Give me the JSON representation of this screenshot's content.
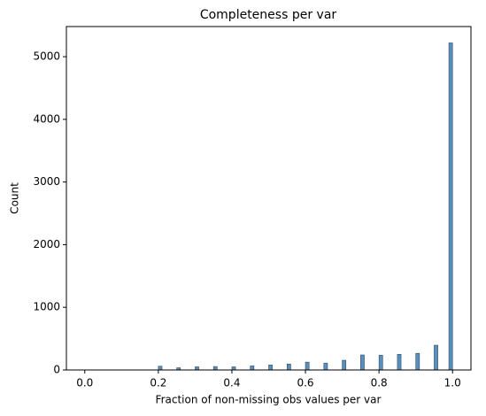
{
  "chart_data": {
    "type": "histogram",
    "title": "Completeness per var",
    "x_label": "Fraction of non-missing obs values per var",
    "y_label": "Count",
    "bins": [
      0,
      0.01,
      0.02,
      0.03,
      0.04,
      0.05,
      0.06,
      0.07,
      0.08,
      0.09,
      0.1,
      0.11,
      0.12,
      0.13,
      0.14,
      0.15,
      0.16,
      0.17,
      0.18,
      0.19,
      0.2,
      0.21,
      0.22,
      0.23,
      0.24,
      0.25,
      0.26,
      0.27,
      0.28,
      0.29,
      0.3,
      0.31,
      0.32,
      0.33,
      0.34,
      0.35,
      0.36,
      0.37,
      0.38,
      0.39,
      0.4,
      0.41,
      0.42,
      0.43,
      0.44,
      0.45,
      0.46,
      0.47,
      0.48,
      0.49,
      0.5,
      0.51,
      0.52,
      0.53,
      0.54,
      0.55,
      0.56,
      0.57,
      0.58,
      0.59,
      0.6,
      0.61,
      0.62,
      0.63,
      0.64,
      0.65,
      0.66,
      0.67,
      0.68,
      0.69,
      0.7,
      0.71,
      0.72,
      0.73,
      0.74,
      0.75,
      0.76,
      0.77,
      0.78,
      0.79,
      0.8,
      0.81,
      0.82,
      0.83,
      0.84,
      0.85,
      0.86,
      0.87,
      0.88,
      0.89,
      0.9,
      0.91,
      0.92,
      0.93,
      0.94,
      0.95,
      0.96,
      0.97,
      0.98,
      0.99,
      1
    ],
    "counts": [
      0,
      0,
      0,
      0,
      0,
      0,
      0,
      0,
      0,
      0,
      0,
      0,
      0,
      0,
      0,
      0,
      0,
      0,
      0,
      0,
      60,
      0,
      0,
      0,
      0,
      35,
      0,
      0,
      0,
      0,
      50,
      0,
      0,
      0,
      0,
      55,
      0,
      0,
      0,
      0,
      50,
      0,
      0,
      0,
      0,
      65,
      0,
      0,
      0,
      0,
      80,
      0,
      0,
      0,
      0,
      95,
      0,
      0,
      0,
      0,
      125,
      0,
      0,
      0,
      0,
      110,
      0,
      0,
      0,
      0,
      155,
      0,
      0,
      0,
      0,
      240,
      0,
      0,
      0,
      0,
      235,
      0,
      0,
      0,
      0,
      250,
      0,
      0,
      0,
      0,
      265,
      0,
      0,
      0,
      0,
      395,
      0,
      0,
      0,
      5220
    ],
    "color": "#5a8fbb",
    "edge_color": "#2f4f6b",
    "xlim": [
      -0.05,
      1.05
    ],
    "xticks": [
      {
        "value": 0,
        "label": "0.0"
      },
      0.2,
      0.4,
      0.6,
      0.8,
      {
        "value": 1,
        "label": "1.0"
      }
    ],
    "ylim": [
      0,
      5481
    ],
    "yticks": [
      0,
      1000,
      2000,
      3000,
      4000,
      5000
    ],
    "grid": false
  }
}
